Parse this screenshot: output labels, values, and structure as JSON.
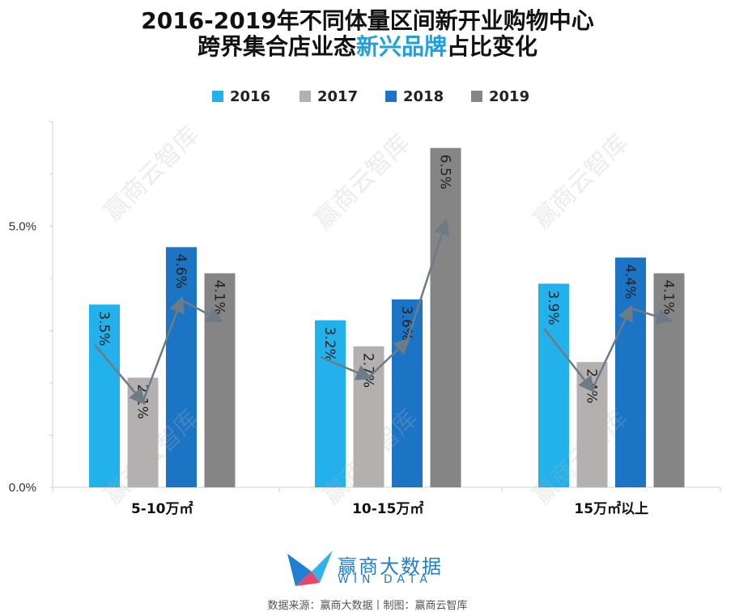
{
  "title": {
    "line1": "2016-2019年不同体量区间新开业购物中心",
    "line2_pre": "跨界集合店业态",
    "line2_highlight": "新兴品牌",
    "line2_post": "占比变化"
  },
  "colors": {
    "highlight": "#1f9fe0",
    "s2016": "#22b1ea",
    "s2017": "#b4b0b0",
    "s2018": "#1c74c4",
    "s2019": "#858585",
    "trend_line": "#6d7b86"
  },
  "watermark_text": "赢商云智库",
  "logo": {
    "cn": "赢商大数据",
    "en": "WIN DATA"
  },
  "source": "数据来源：赢商大数据丨制图：赢商云智库",
  "chart_data": {
    "type": "bar",
    "categories": [
      "5-10万㎡",
      "10-15万㎡",
      "15万㎡以上"
    ],
    "series": [
      {
        "name": "2016",
        "values": [
          3.5,
          3.2,
          3.9
        ],
        "labels": [
          "3.5%",
          "3.2%",
          "3.9%"
        ]
      },
      {
        "name": "2017",
        "values": [
          2.1,
          2.7,
          2.4
        ],
        "labels": [
          "2.1%",
          "2.7%",
          "2.4%"
        ]
      },
      {
        "name": "2018",
        "values": [
          4.6,
          3.6,
          4.4
        ],
        "labels": [
          "4.6%",
          "3.6%",
          "4.4%"
        ]
      },
      {
        "name": "2019",
        "values": [
          4.1,
          6.5,
          4.1
        ],
        "labels": [
          "4.1%",
          "6.5%",
          "4.1%"
        ]
      }
    ],
    "y_ticks": [
      0,
      5
    ],
    "y_tick_labels": [
      "0.0%",
      "5.0%"
    ],
    "ylim": [
      0,
      7
    ],
    "legend_position": "top",
    "grid": false,
    "trend_arrows": true
  }
}
